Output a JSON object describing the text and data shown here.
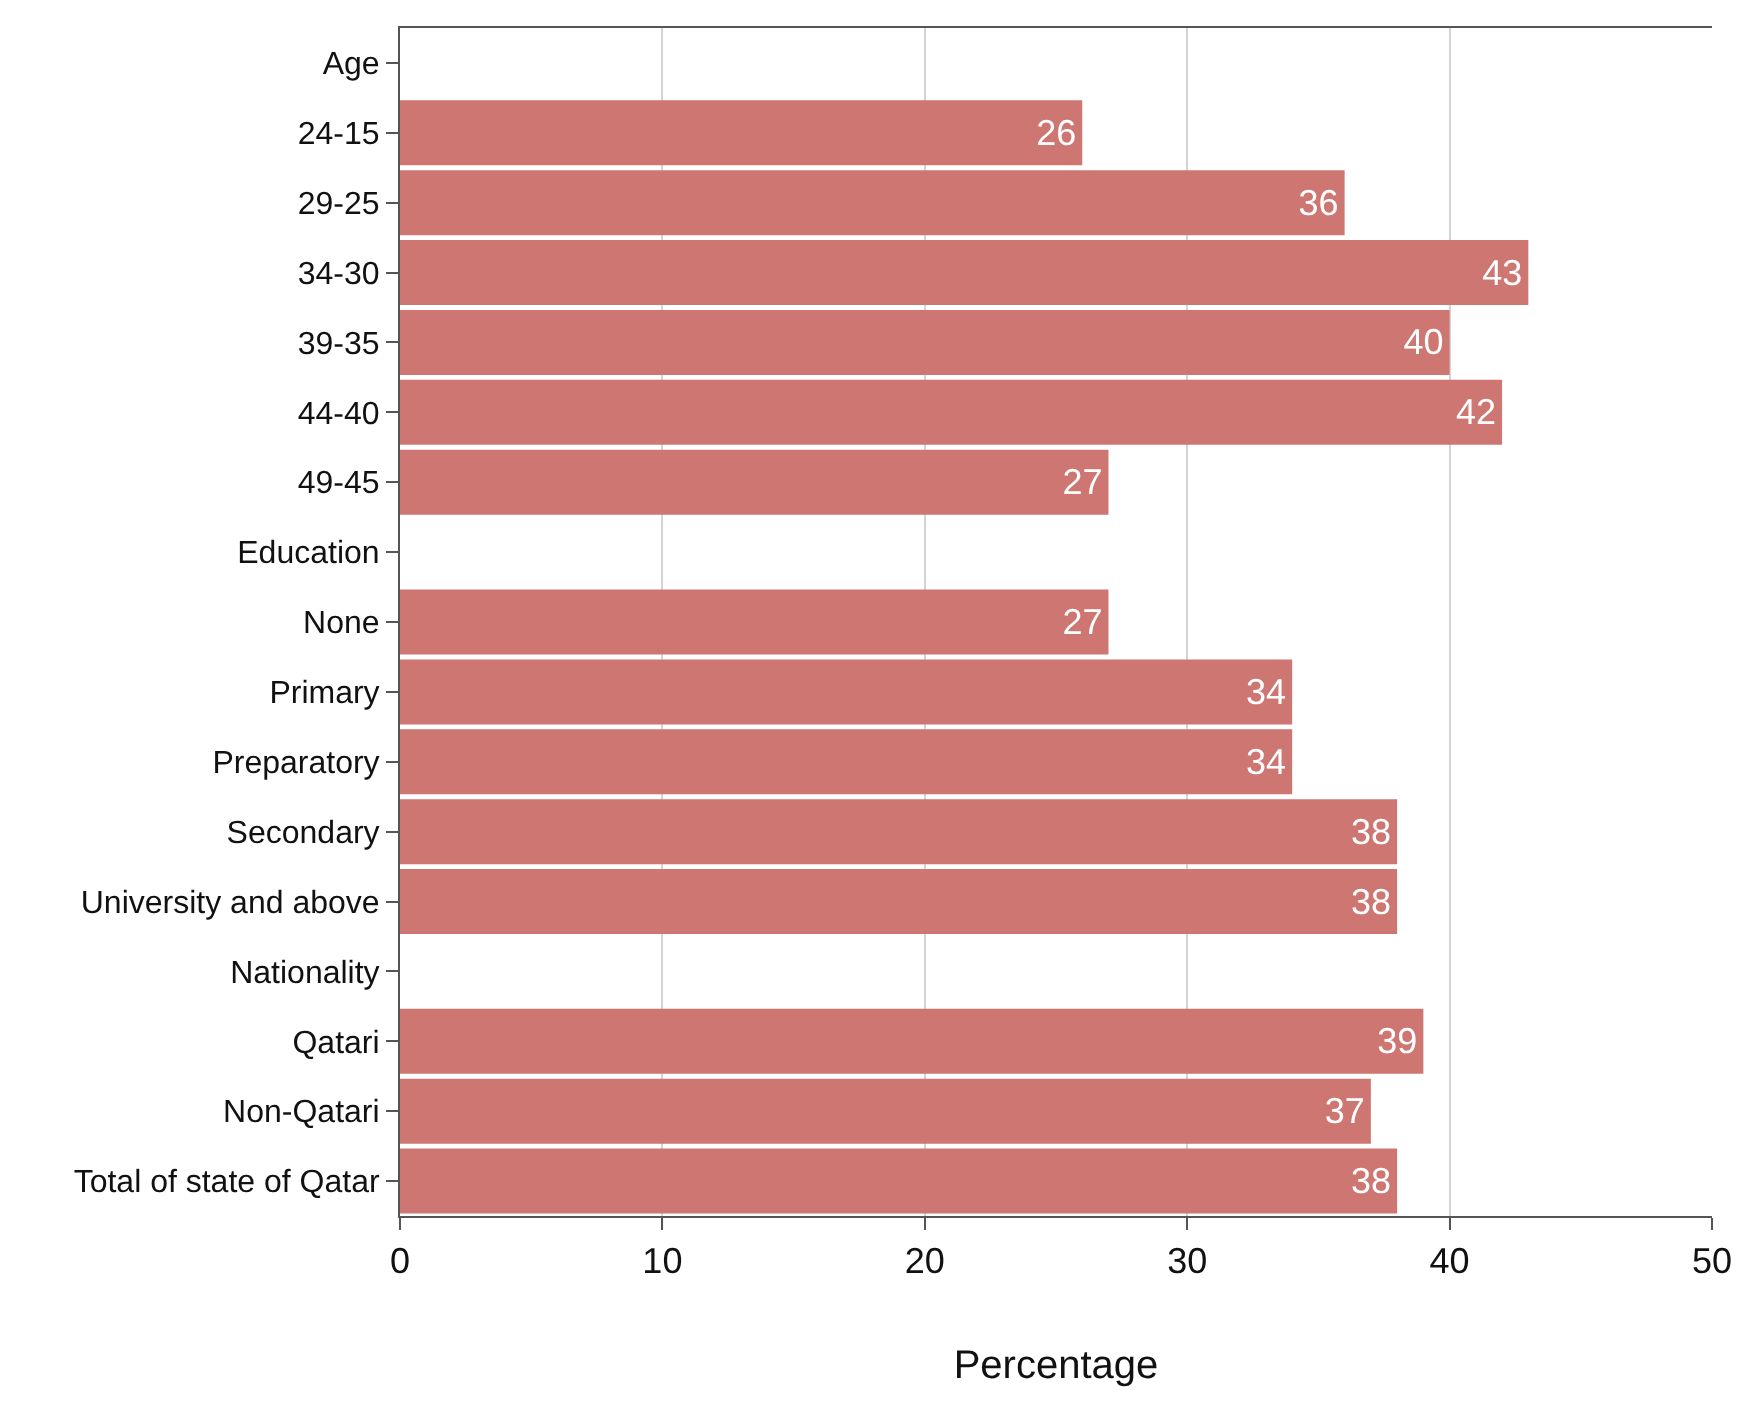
{
  "chart_data": {
    "type": "bar",
    "orientation": "horizontal",
    "xlabel": "Percentage",
    "categories": [
      "Age",
      "24-15",
      "29-25",
      "34-30",
      "39-35",
      "44-40",
      "49-45",
      "Education",
      "None",
      "Primary",
      "Preparatory",
      "Secondary",
      "University and above",
      "Nationality",
      "Qatari",
      "Non-Qatari",
      "Total of state of Qatar"
    ],
    "values": [
      null,
      26,
      36,
      43,
      40,
      42,
      27,
      null,
      27,
      34,
      34,
      38,
      38,
      null,
      39,
      37,
      38
    ],
    "color": "#cd7672",
    "xlim": [
      0,
      50
    ],
    "xticks": [
      0,
      10,
      20,
      30,
      40,
      50
    ],
    "grid": "x",
    "data_labels": true
  }
}
